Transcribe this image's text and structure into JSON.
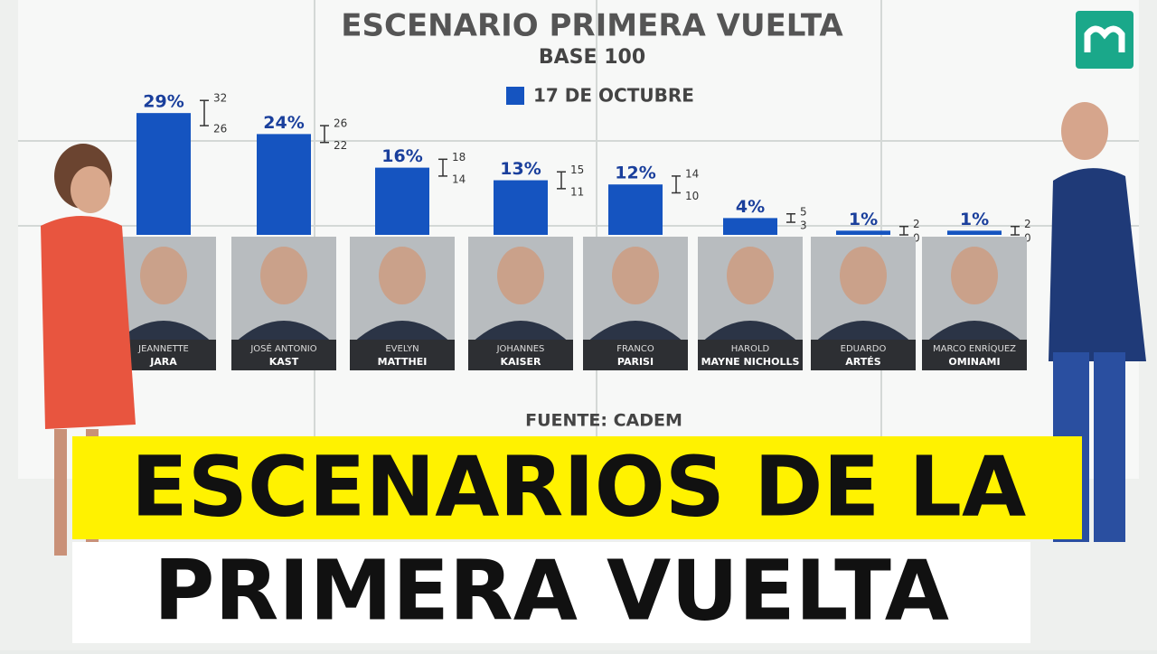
{
  "chart_data": {
    "type": "bar",
    "title": "ESCENARIO PRIMERA VUELTA",
    "subtitle": "BASE 100",
    "first_names": [
      "JEANNETTE",
      "JOSÉ ANTONIO",
      "EVELYN",
      "JOHANNES",
      "FRANCO",
      "HAROLD",
      "EDUARDO",
      "MARCO ENRÍQUEZ"
    ],
    "categories": [
      "JARA",
      "KAST",
      "MATTHEI",
      "KAISER",
      "PARISI",
      "MAYNE NICHOLLS",
      "ARTÉS",
      "OMINAMI"
    ],
    "series": [
      {
        "name": "17 DE OCTUBRE",
        "color": "#1554c0",
        "values": [
          29,
          24,
          16,
          13,
          12,
          4,
          1,
          1
        ],
        "value_labels": [
          "29%",
          "24%",
          "16%",
          "13%",
          "12%",
          "4%",
          "1%",
          "1%"
        ],
        "upper": [
          32,
          26,
          18,
          15,
          14,
          5,
          2,
          2
        ],
        "lower": [
          26,
          22,
          14,
          11,
          10,
          3,
          0,
          0
        ]
      }
    ],
    "source": "FUENTE: CADEM"
  },
  "banner": {
    "line1": "ESCENARIOS DE LA",
    "line2": "PRIMERA VUELTA"
  }
}
